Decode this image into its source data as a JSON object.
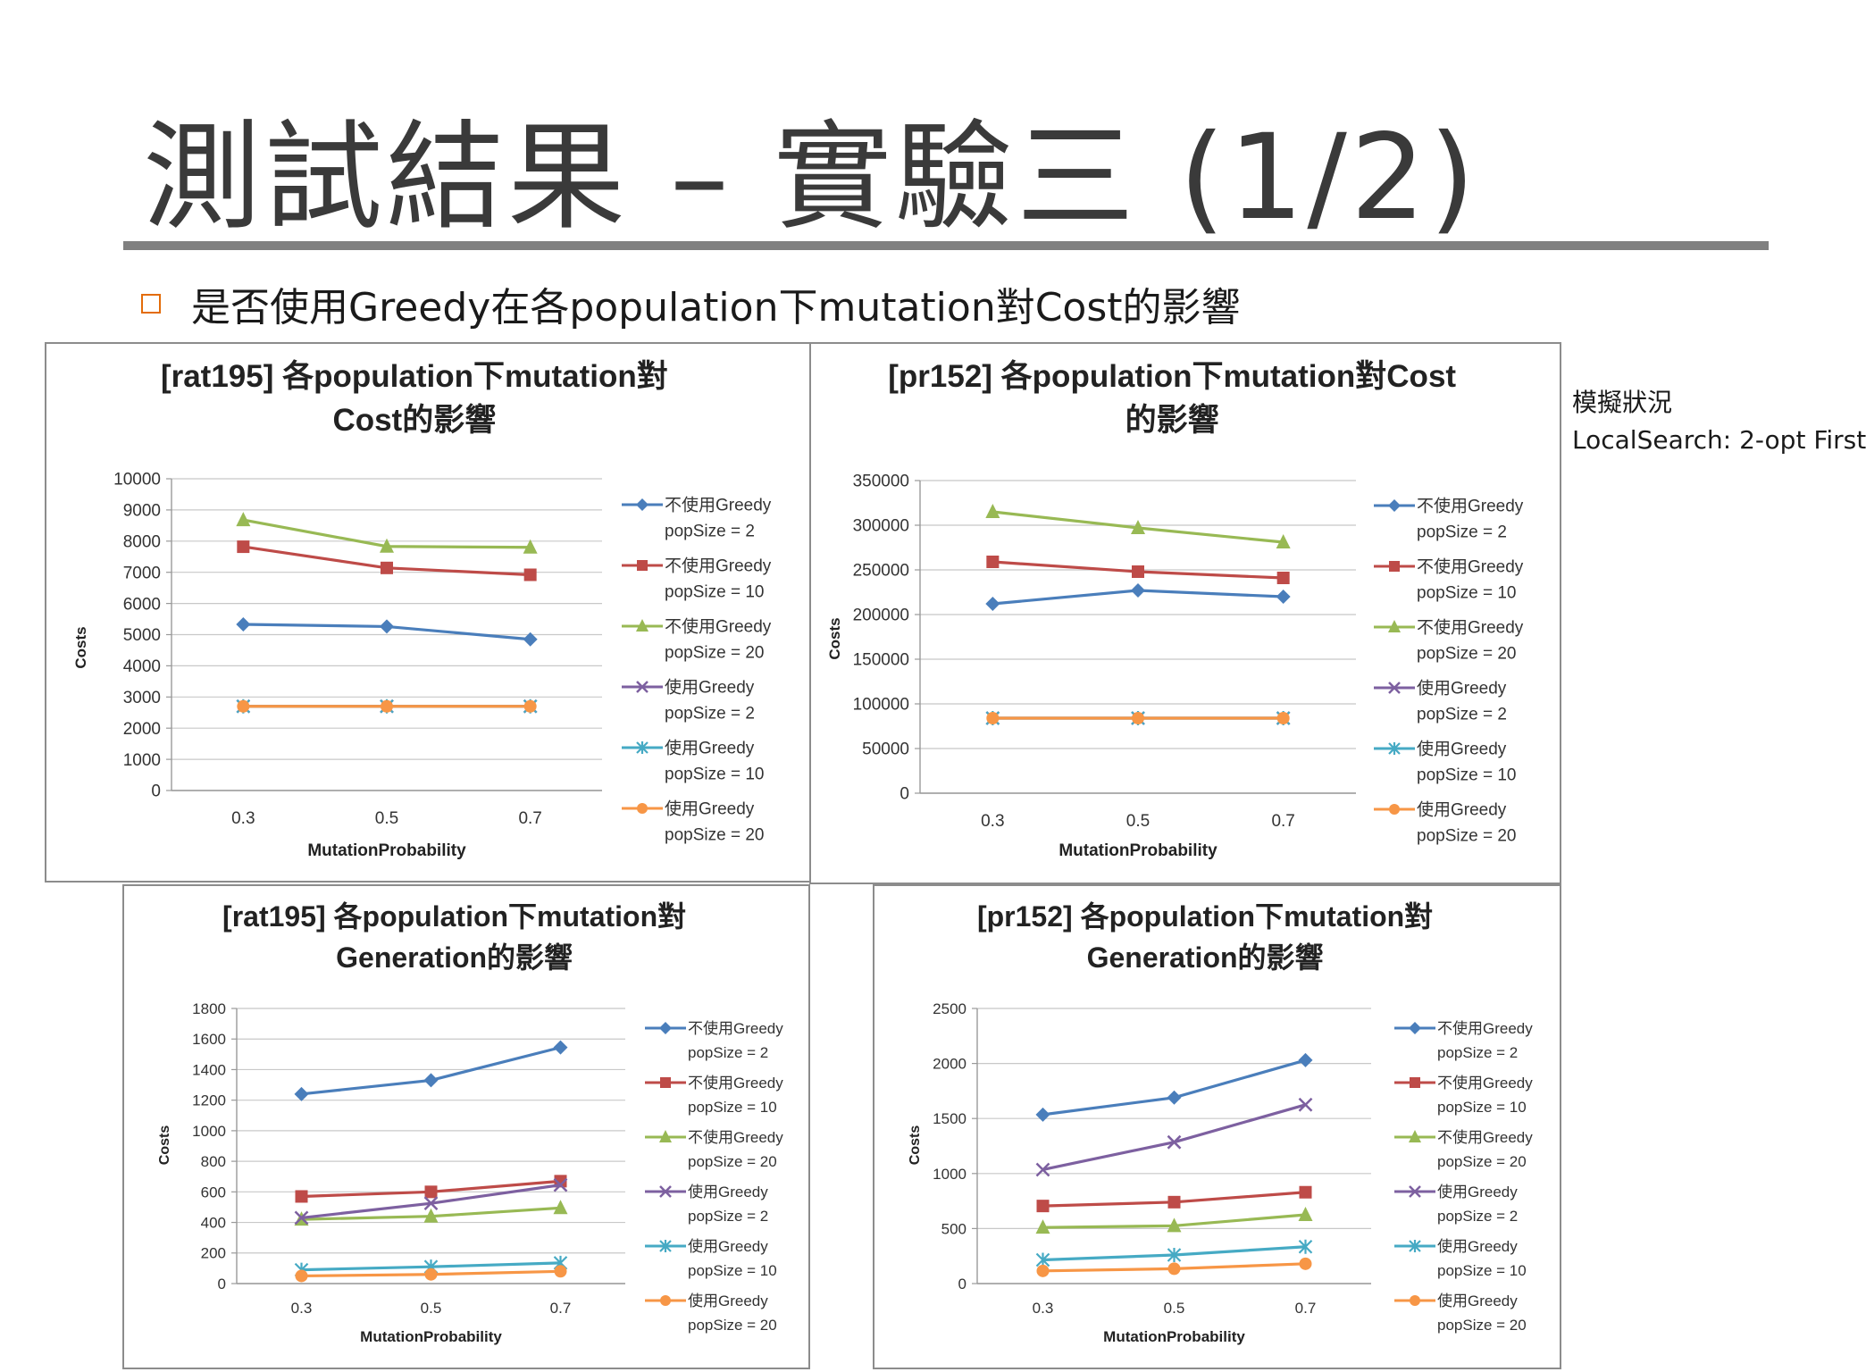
{
  "slide": {
    "title": "測試結果 – 實驗三 (1/2)",
    "bullet": "是否使用Greedy在各population下mutation對Cost的影響",
    "note": [
      "模擬狀況",
      "LocalSearch: 2-opt First"
    ]
  },
  "colors": {
    "series": [
      "#4a7ebb",
      "#be4b48",
      "#98b954",
      "#7d60a0",
      "#46aac4",
      "#f79646"
    ],
    "rule": "#808080",
    "bullet": "#e36c09"
  },
  "markers": [
    "diamond",
    "square",
    "triangle",
    "x",
    "star",
    "circle"
  ],
  "chart_data": [
    {
      "type": "line",
      "title": [
        "[rat195] 各population下mutation對",
        "Cost的影響"
      ],
      "xlabel": "MutationProbability",
      "ylabel": "Costs",
      "categories": [
        "0.3",
        "0.5",
        "0.7"
      ],
      "ylim": [
        0,
        10000
      ],
      "yticks": [
        0,
        1000,
        2000,
        3000,
        4000,
        5000,
        6000,
        7000,
        8000,
        9000,
        10000
      ],
      "grid": true,
      "legend": "right",
      "series": [
        {
          "name": [
            "不使用Greedy",
            "popSize = 2"
          ],
          "values": [
            5330,
            5260,
            4850
          ]
        },
        {
          "name": [
            "不使用Greedy",
            "popSize = 10"
          ],
          "values": [
            7820,
            7140,
            6920
          ]
        },
        {
          "name": [
            "不使用Greedy",
            "popSize = 20"
          ],
          "values": [
            8680,
            7830,
            7800
          ]
        },
        {
          "name": [
            "使用Greedy",
            "popSize = 2"
          ],
          "values": [
            2700,
            2700,
            2700
          ]
        },
        {
          "name": [
            "使用Greedy",
            "popSize = 10"
          ],
          "values": [
            2700,
            2700,
            2700
          ]
        },
        {
          "name": [
            "使用Greedy",
            "popSize = 20"
          ],
          "values": [
            2700,
            2700,
            2700
          ]
        }
      ]
    },
    {
      "type": "line",
      "title": [
        "[pr152] 各population下mutation對Cost",
        "的影響"
      ],
      "xlabel": "MutationProbability",
      "ylabel": "Costs",
      "categories": [
        "0.3",
        "0.5",
        "0.7"
      ],
      "ylim": [
        0,
        350000
      ],
      "yticks": [
        0,
        50000,
        100000,
        150000,
        200000,
        250000,
        300000,
        350000
      ],
      "grid": true,
      "legend": "right",
      "series": [
        {
          "name": [
            "不使用Greedy",
            "popSize = 2"
          ],
          "values": [
            212000,
            227000,
            220000
          ]
        },
        {
          "name": [
            "不使用Greedy",
            "popSize = 10"
          ],
          "values": [
            259000,
            248000,
            241000
          ]
        },
        {
          "name": [
            "不使用Greedy",
            "popSize = 20"
          ],
          "values": [
            315000,
            297000,
            281000
          ]
        },
        {
          "name": [
            "使用Greedy",
            "popSize = 2"
          ],
          "values": [
            84000,
            84000,
            84000
          ]
        },
        {
          "name": [
            "使用Greedy",
            "popSize = 10"
          ],
          "values": [
            84000,
            84000,
            84000
          ]
        },
        {
          "name": [
            "使用Greedy",
            "popSize = 20"
          ],
          "values": [
            84000,
            84000,
            84000
          ]
        }
      ]
    },
    {
      "type": "line",
      "title": [
        "[rat195] 各population下mutation對",
        "Generation的影響"
      ],
      "xlabel": "MutationProbability",
      "ylabel": "Costs",
      "categories": [
        "0.3",
        "0.5",
        "0.7"
      ],
      "ylim": [
        0,
        1800
      ],
      "yticks": [
        0,
        200,
        400,
        600,
        800,
        1000,
        1200,
        1400,
        1600,
        1800
      ],
      "grid": true,
      "legend": "right",
      "series": [
        {
          "name": [
            "不使用Greedy",
            "popSize = 2"
          ],
          "values": [
            1240,
            1330,
            1545
          ]
        },
        {
          "name": [
            "不使用Greedy",
            "popSize = 10"
          ],
          "values": [
            570,
            600,
            670
          ]
        },
        {
          "name": [
            "不使用Greedy",
            "popSize = 20"
          ],
          "values": [
            420,
            440,
            495
          ]
        },
        {
          "name": [
            "使用Greedy",
            "popSize = 2"
          ],
          "values": [
            430,
            525,
            645
          ]
        },
        {
          "name": [
            "使用Greedy",
            "popSize = 10"
          ],
          "values": [
            90,
            110,
            135
          ]
        },
        {
          "name": [
            "使用Greedy",
            "popSize = 20"
          ],
          "values": [
            50,
            60,
            80
          ]
        }
      ]
    },
    {
      "type": "line",
      "title": [
        "[pr152] 各population下mutation對",
        "Generation的影響"
      ],
      "xlabel": "MutationProbability",
      "ylabel": "Costs",
      "categories": [
        "0.3",
        "0.5",
        "0.7"
      ],
      "ylim": [
        0,
        2500
      ],
      "yticks": [
        0,
        500,
        1000,
        1500,
        2000,
        2500
      ],
      "grid": true,
      "legend": "right",
      "series": [
        {
          "name": [
            "不使用Greedy",
            "popSize = 2"
          ],
          "values": [
            1535,
            1690,
            2030
          ]
        },
        {
          "name": [
            "不使用Greedy",
            "popSize = 10"
          ],
          "values": [
            705,
            740,
            830
          ]
        },
        {
          "name": [
            "不使用Greedy",
            "popSize = 20"
          ],
          "values": [
            510,
            525,
            625
          ]
        },
        {
          "name": [
            "使用Greedy",
            "popSize = 2"
          ],
          "values": [
            1035,
            1285,
            1625
          ]
        },
        {
          "name": [
            "使用Greedy",
            "popSize = 10"
          ],
          "values": [
            215,
            260,
            335
          ]
        },
        {
          "name": [
            "使用Greedy",
            "popSize = 20"
          ],
          "values": [
            115,
            135,
            180
          ]
        }
      ]
    }
  ]
}
